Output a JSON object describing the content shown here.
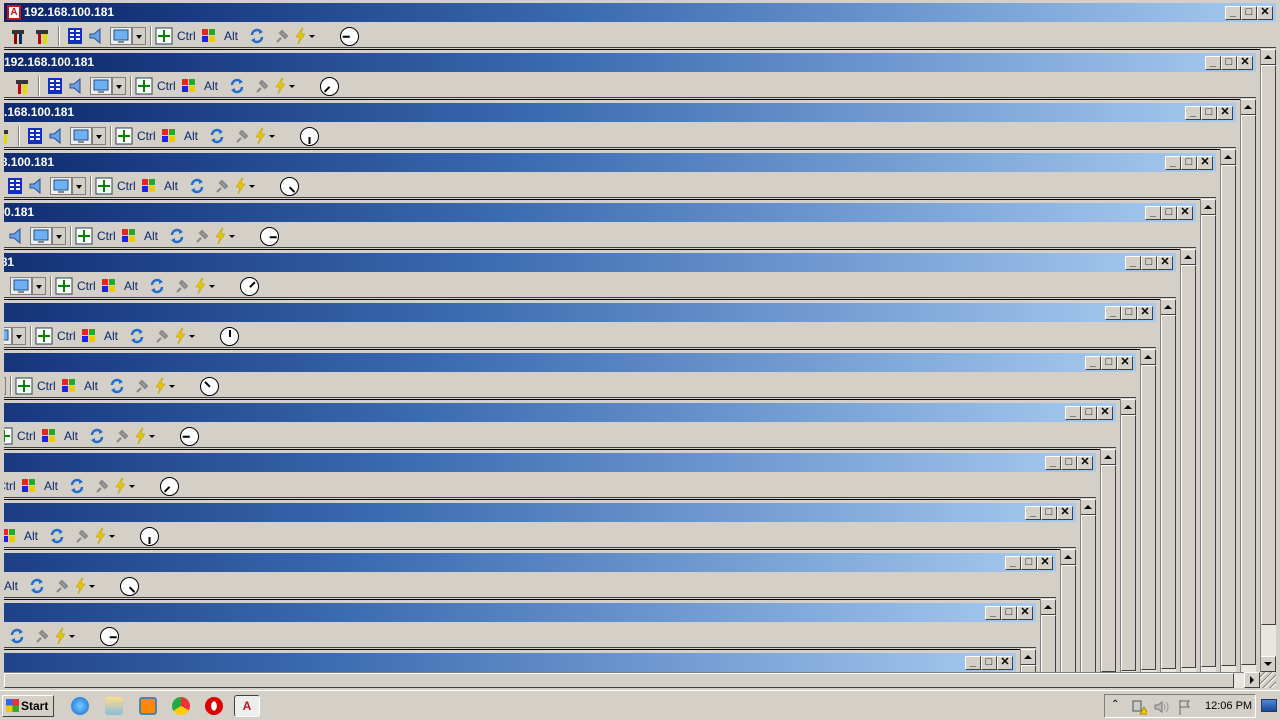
{
  "window": {
    "title": "192.168.100.181",
    "app_icon": "A"
  },
  "toolbar": {
    "ctrl_label": "Ctrl",
    "alt_label": "Alt"
  },
  "window_controls": {
    "minimize": "_",
    "maximize": "□",
    "close": "✕"
  },
  "nesting_levels": 14,
  "taskbar": {
    "start_label": "Start",
    "pinned": [
      "internet-explorer-icon",
      "file-explorer-icon",
      "media-player-icon",
      "chrome-icon",
      "opera-icon",
      "remote-desktop-app-icon"
    ],
    "tray": {
      "expand": "⌃",
      "clock": "12:06 PM"
    }
  },
  "colors": {
    "titlebar_start": "#0a246a",
    "titlebar_end": "#a6caf0",
    "face": "#d4d0c8"
  }
}
